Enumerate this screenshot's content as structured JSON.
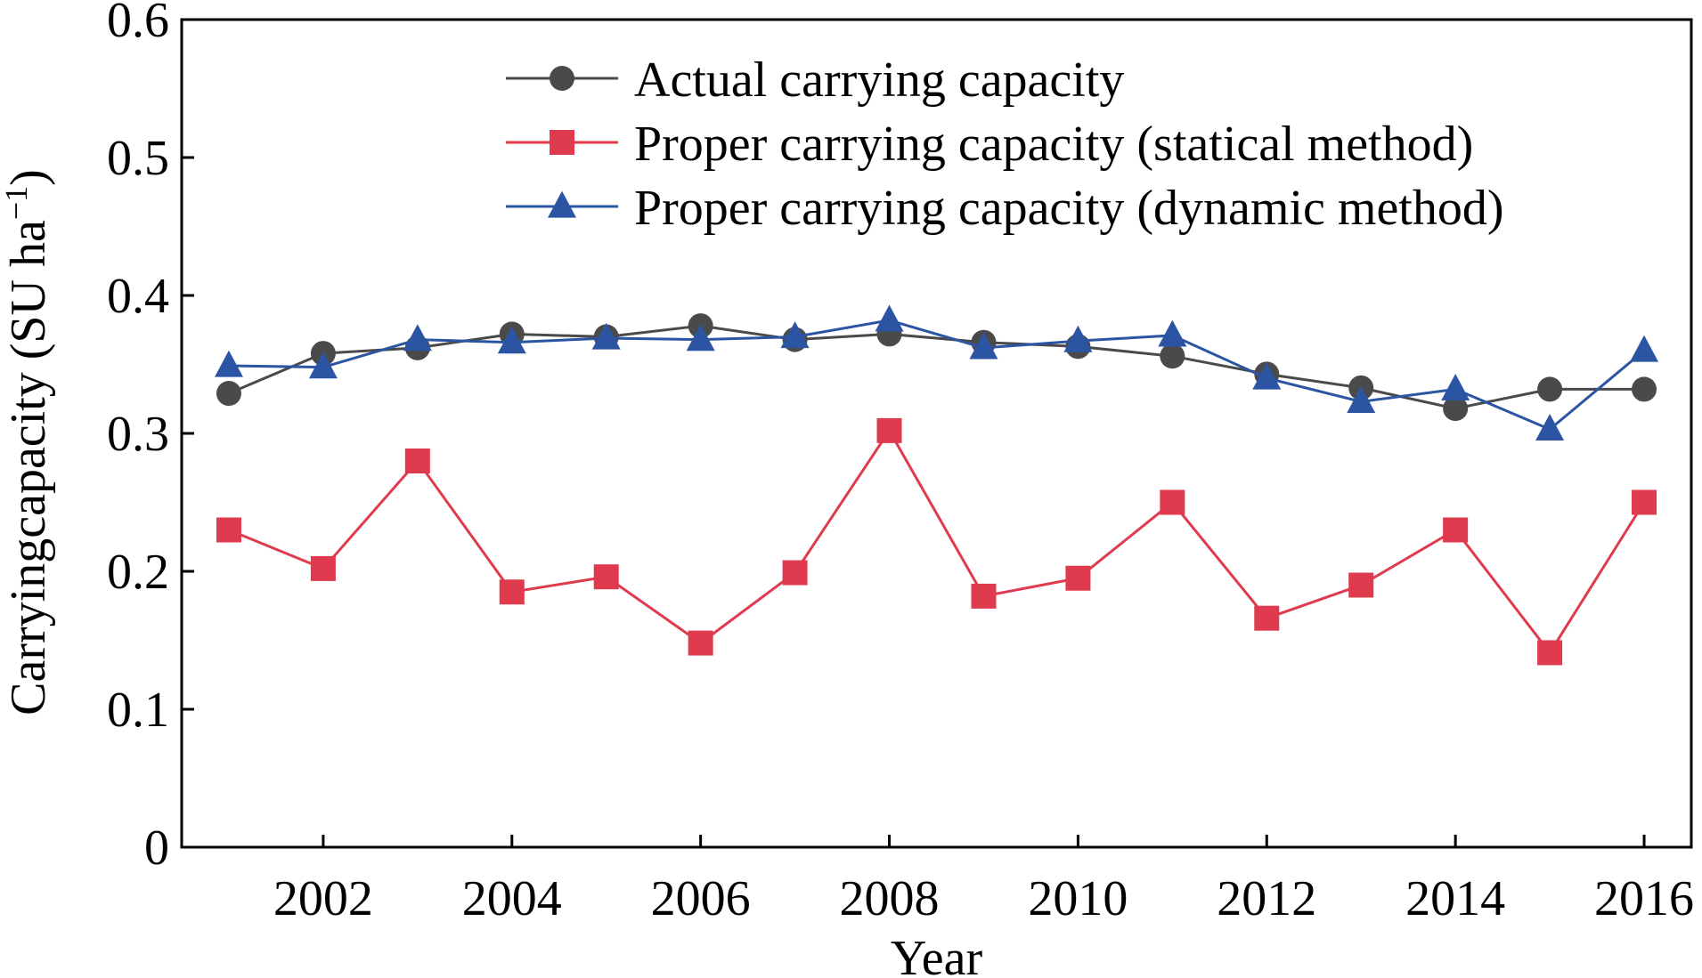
{
  "chart_data": {
    "type": "line",
    "xlabel": "Year",
    "ylabel_prefix": "Carryingcapacity (SU ha",
    "ylabel_sup": "−1",
    "ylabel_suffix": ")",
    "xlim": [
      2000.5,
      2016.5
    ],
    "ylim": [
      0,
      0.6
    ],
    "x_ticks": [
      2002,
      2004,
      2006,
      2008,
      2010,
      2012,
      2014,
      2016
    ],
    "y_ticks": [
      0,
      0.1,
      0.2,
      0.3,
      0.4,
      0.5,
      0.6
    ],
    "y_tick_labels": [
      "0",
      "0.1",
      "0.2",
      "0.3",
      "0.4",
      "0.5",
      "0.6"
    ],
    "grid": false,
    "legend_position": "top-right",
    "x": [
      2001,
      2002,
      2003,
      2004,
      2005,
      2006,
      2007,
      2008,
      2009,
      2010,
      2011,
      2012,
      2013,
      2014,
      2015,
      2016
    ],
    "series": [
      {
        "name": "Actual carrying capacity",
        "marker": "circle",
        "color": "#4a4a4a",
        "values": [
          0.329,
          0.358,
          0.362,
          0.372,
          0.37,
          0.378,
          0.368,
          0.372,
          0.366,
          0.363,
          0.356,
          0.343,
          0.333,
          0.318,
          0.332,
          0.332
        ]
      },
      {
        "name": "Proper carrying capacity (statical method)",
        "marker": "square",
        "color": "#e03a4e",
        "values": [
          0.23,
          0.202,
          0.28,
          0.185,
          0.196,
          0.148,
          0.199,
          0.302,
          0.182,
          0.195,
          0.25,
          0.166,
          0.19,
          0.23,
          0.141,
          0.25
        ]
      },
      {
        "name": "Proper carrying capacity (dynamic method)",
        "marker": "triangle",
        "color": "#2b55a3",
        "values": [
          0.349,
          0.348,
          0.368,
          0.366,
          0.369,
          0.368,
          0.37,
          0.382,
          0.362,
          0.367,
          0.371,
          0.34,
          0.323,
          0.332,
          0.303,
          0.36
        ]
      }
    ]
  }
}
